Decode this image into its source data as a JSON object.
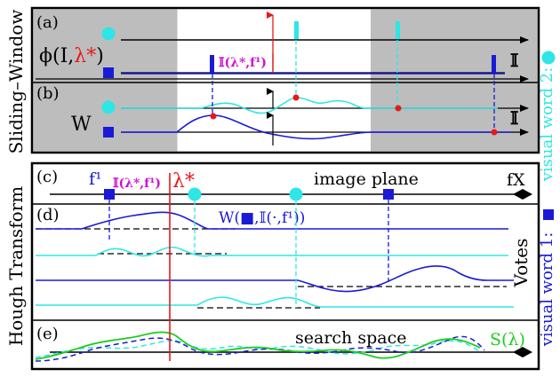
{
  "side_labels": {
    "sliding_window": "Sliding–Window",
    "hough_transform": "Hough Transform",
    "visual_word_2": "visual word 2:",
    "visual_word_1": "visual word 1:"
  },
  "panels": {
    "a": {
      "tag": "(a)",
      "phi_prefix": "ϕ(I,",
      "phi_lambda": "λ*",
      "phi_suffix": ")",
      "indicator_label": "𝕀(λ*,f¹)",
      "axis_label": "𝕀"
    },
    "b": {
      "tag": "(b)",
      "w_label": "W",
      "axis_label": "𝕀"
    },
    "c": {
      "tag": "(c)",
      "feature_label": "f¹",
      "indicator_label": "𝕀(λ*,f¹)",
      "lambda_label": "λ*",
      "plane_label": "image plane",
      "axis_label": "fX"
    },
    "d": {
      "tag": "(d)",
      "w_function": "W(■,𝕀(·,f¹))",
      "votes_label": "Votes"
    },
    "e": {
      "tag": "(e)",
      "search_label": "search space",
      "score_label": "S(λ)"
    }
  },
  "colors": {
    "cyan": "#2ee6e6",
    "blue": "#1a1ad6",
    "red": "#e81818",
    "magenta": "#d010d0",
    "green": "#1ecc1e",
    "gray": "#bdbdbd",
    "black": "#000000"
  },
  "icons": {
    "visual_word_1": "blue-square-icon",
    "visual_word_2": "cyan-circle-icon"
  }
}
